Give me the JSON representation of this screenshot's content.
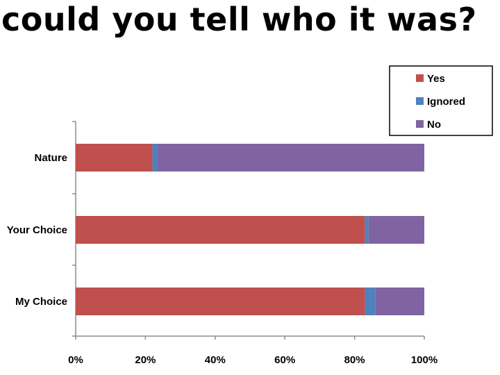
{
  "title": "could you tell who it was?",
  "chart_data": {
    "type": "bar",
    "orientation": "horizontal",
    "stacked": true,
    "categories": [
      "Nature",
      "Your Choice",
      "My Choice"
    ],
    "series": [
      {
        "name": "Yes",
        "color": "#c0504d",
        "values": [
          22,
          83,
          83
        ]
      },
      {
        "name": "Ignored",
        "color": "#4f81bd",
        "values": [
          1.5,
          1,
          3
        ]
      },
      {
        "name": "No",
        "color": "#8064a2",
        "values": [
          76.5,
          16,
          14
        ]
      }
    ],
    "xlim": [
      0,
      100
    ],
    "x_ticks": [
      "0%",
      "20%",
      "40%",
      "60%",
      "80%",
      "100%"
    ],
    "legend_position": "top-right",
    "grid": false
  }
}
